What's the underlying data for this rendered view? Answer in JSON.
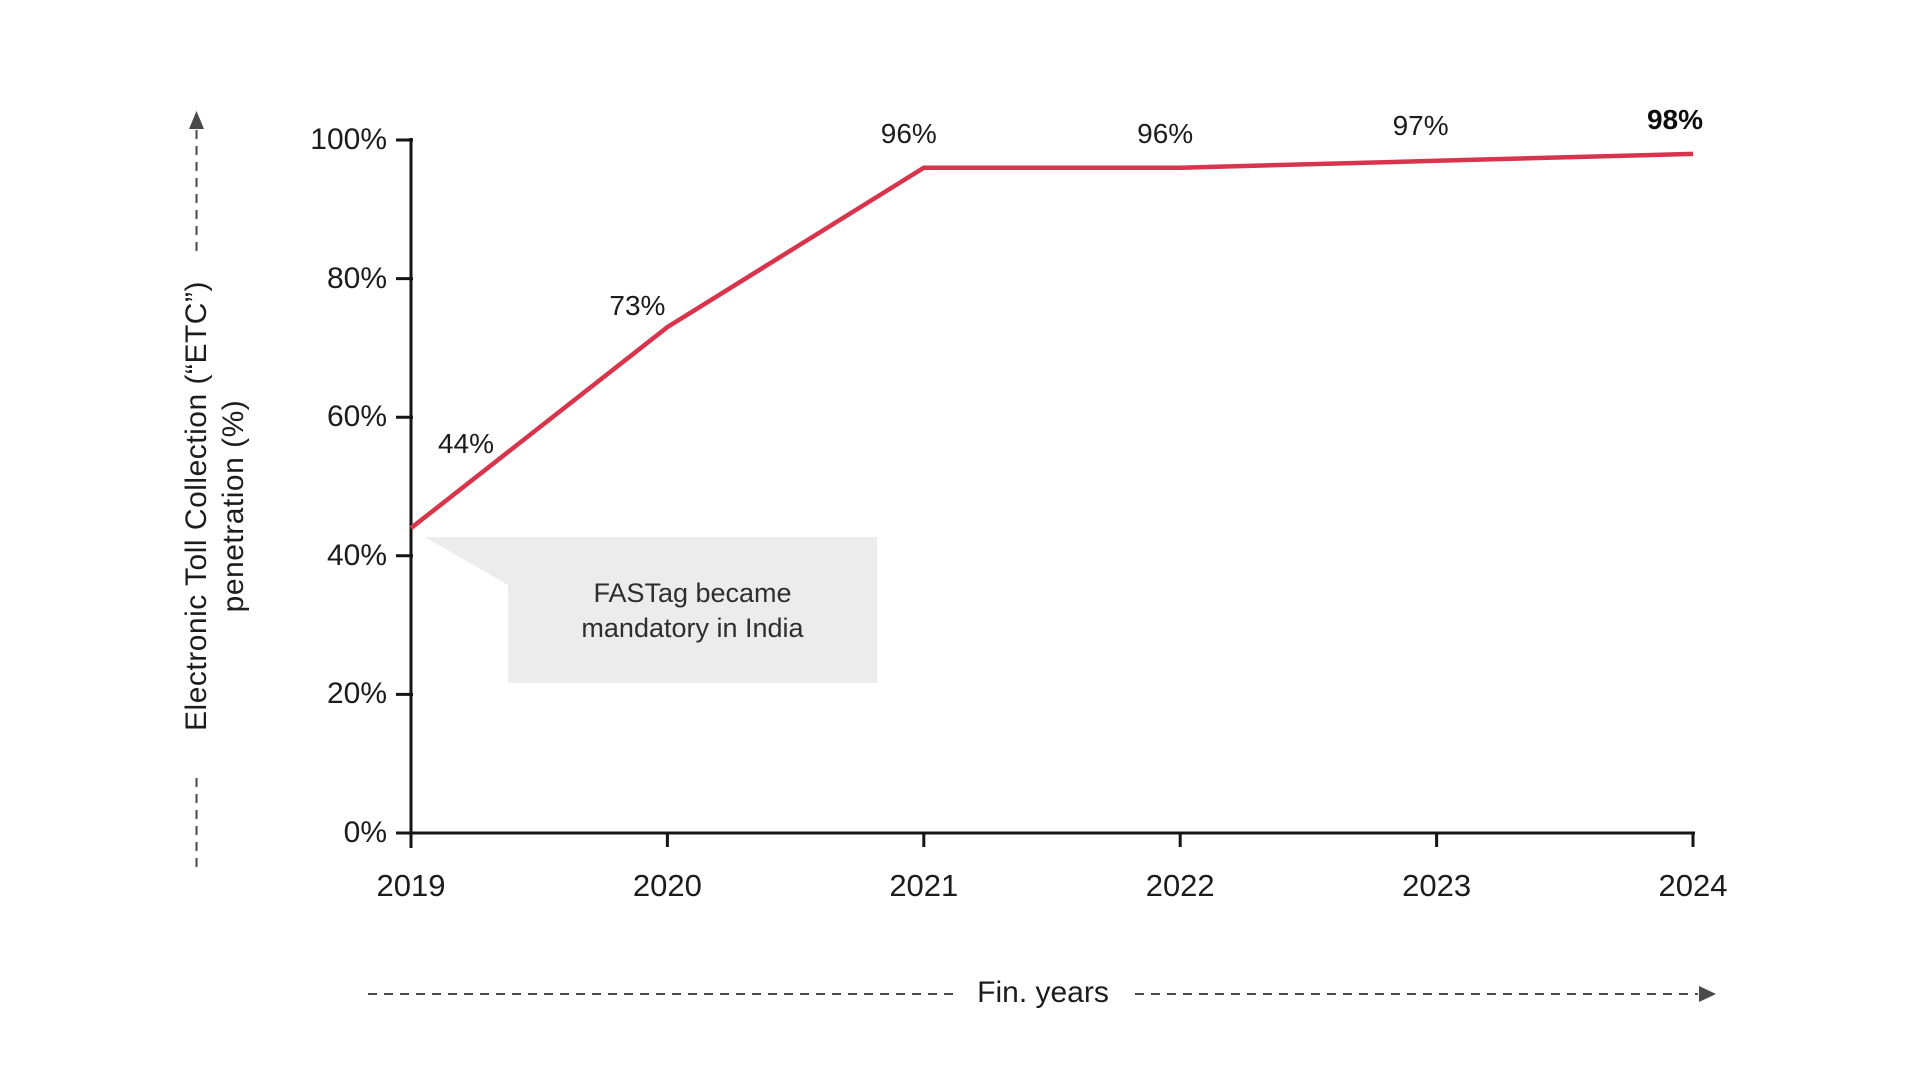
{
  "chart_data": {
    "type": "line",
    "x": [
      "2019",
      "2020",
      "2021",
      "2022",
      "2023",
      "2024"
    ],
    "values": [
      44,
      73,
      96,
      96,
      97,
      98
    ],
    "data_labels": [
      "44%",
      "73%",
      "96%",
      "96%",
      "97%",
      "98%"
    ],
    "emphasized_index": 5,
    "xlabel": "Fin. years",
    "ylabel_line1": "Electronic Toll Collection (“ETC”)",
    "ylabel_line2": "penetration (%)",
    "ylim": [
      0,
      100
    ],
    "yticks": [
      0,
      20,
      40,
      60,
      80,
      100
    ],
    "ytick_labels": [
      "0%",
      "20%",
      "40%",
      "60%",
      "80%",
      "100%"
    ],
    "grid": false,
    "legend": null,
    "line_color": "#d8344c",
    "axis_color": "#151515",
    "arrow_color": "#4a4a4a",
    "annotation": {
      "text": "FASTag became mandatory in India",
      "background": "#ececec"
    }
  }
}
